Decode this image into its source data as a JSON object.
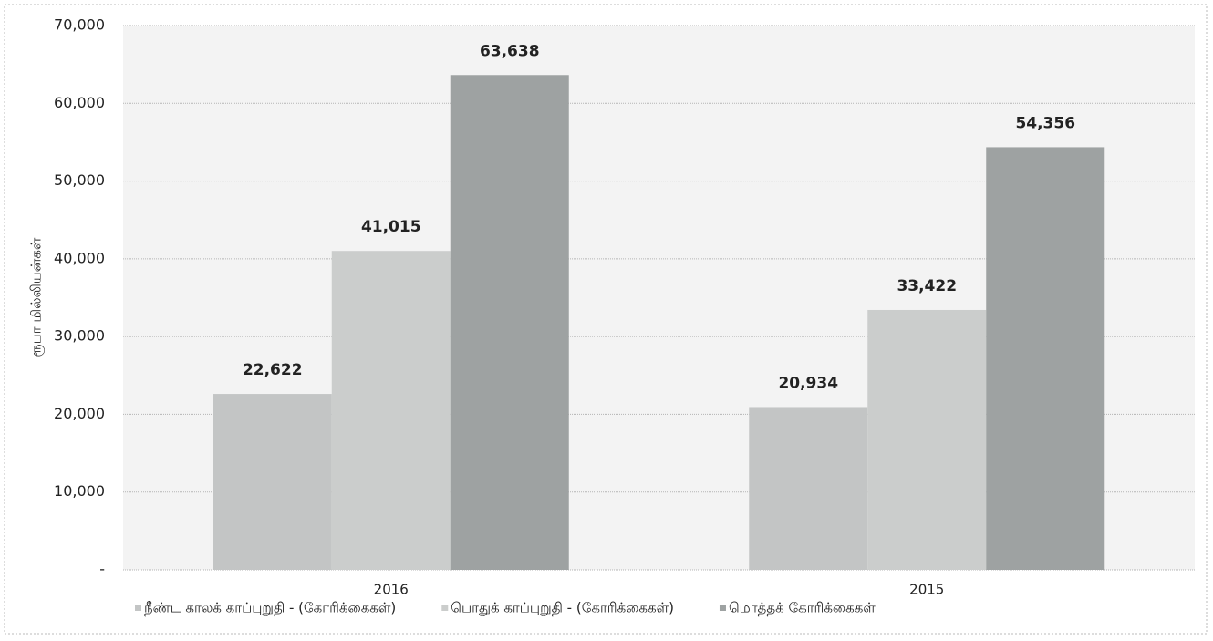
{
  "chart_data": {
    "type": "bar",
    "y_label": "ரூபா மில்லியன்கள்",
    "categories": [
      "2016",
      "2015"
    ],
    "series": [
      {
        "name": "நீண்ட காலக் காப்புறுதி - (கோரிக்கைகள்)",
        "color": "#c3c5c5",
        "values": [
          22622,
          20934
        ],
        "value_labels": [
          "22,622",
          "20,934"
        ]
      },
      {
        "name": "பொதுக் காப்புறுதி - (கோரிக்கைகள்)",
        "color": "#cbcdcc",
        "values": [
          41015,
          33422
        ],
        "value_labels": [
          "41,015",
          "33,422"
        ]
      },
      {
        "name": "மொத்தக் கோரிக்கைகள்",
        "color": "#9ea2a2",
        "values": [
          63638,
          54356
        ],
        "value_labels": [
          "63,638",
          "54,356"
        ]
      }
    ],
    "ylim": [
      0,
      70000
    ],
    "yticks": [
      {
        "value": 0,
        "label": "-"
      },
      {
        "value": 10000,
        "label": "10,000"
      },
      {
        "value": 20000,
        "label": "20,000"
      },
      {
        "value": 30000,
        "label": "30,000"
      },
      {
        "value": 40000,
        "label": "40,000"
      },
      {
        "value": 50000,
        "label": "50,000"
      },
      {
        "value": 60000,
        "label": "60,000"
      },
      {
        "value": 70000,
        "label": "70,000"
      }
    ],
    "grid": true,
    "legend": "bottom"
  }
}
